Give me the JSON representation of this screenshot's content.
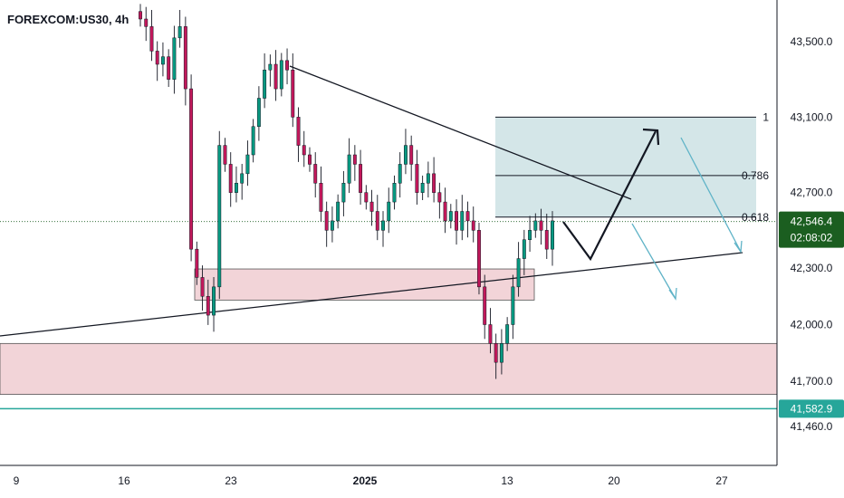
{
  "symbol_label": "FOREXCOM:US30, 4h",
  "colors": {
    "up": "#089981",
    "down": "#c2185b",
    "up_tag": "#1b5e20",
    "support_tag": "#26a69a",
    "zone_fill": "#f2d4d8",
    "fib_fill": "#cfe3e6",
    "trend_line": "#131722",
    "projection_arrow": "#5fb3c7"
  },
  "chart_data": {
    "type": "candlestick",
    "timeframe": "4h",
    "y_ticks": [
      43500,
      43100,
      42700,
      42300,
      42000,
      41700,
      41460
    ],
    "y_tick_labels": [
      "43,500.0",
      "43,100.0",
      "42,700.0",
      "42,300.0",
      "42,000.0",
      "41,700.0",
      "41,460.0"
    ],
    "ylim": [
      41300,
      43650
    ],
    "x_ticks": [
      "9",
      "16",
      "23",
      "2025",
      "13",
      "20",
      "27"
    ],
    "current_price": {
      "value": 42546.4,
      "label": "42,546.4",
      "countdown": "02:08:02"
    },
    "support_price": {
      "value": 41582.9,
      "label": "41,582.9"
    },
    "fibonacci": [
      {
        "level": "1",
        "price": 43100
      },
      {
        "level": "0.786",
        "price": 42790
      },
      {
        "level": "0.618",
        "price": 42570
      }
    ],
    "zones": [
      {
        "name": "demand-zone-upper",
        "price_top": 42295,
        "price_bottom": 42130
      },
      {
        "name": "demand-zone-lower",
        "price_top": 41900,
        "price_bottom": 41630
      }
    ],
    "candles_close": [
      43620,
      43580,
      43450,
      43380,
      43420,
      43300,
      43520,
      43580,
      43250,
      42400,
      42250,
      42150,
      42050,
      42200,
      42950,
      42850,
      42700,
      42750,
      42800,
      42900,
      43050,
      43200,
      43350,
      43380,
      43250,
      43400,
      43350,
      43100,
      42950,
      42900,
      42850,
      42750,
      42600,
      42500,
      42550,
      42650,
      42750,
      42900,
      42850,
      42700,
      42650,
      42600,
      42500,
      42550,
      42650,
      42750,
      42850,
      42950,
      42850,
      42700,
      42750,
      42800,
      42700,
      42650,
      42550,
      42600,
      42500,
      42600,
      42550,
      42500,
      42200,
      42000,
      41900,
      41800,
      41900,
      42000,
      42200,
      42350,
      42450,
      42500,
      42550,
      42500,
      42400,
      42550
    ]
  }
}
